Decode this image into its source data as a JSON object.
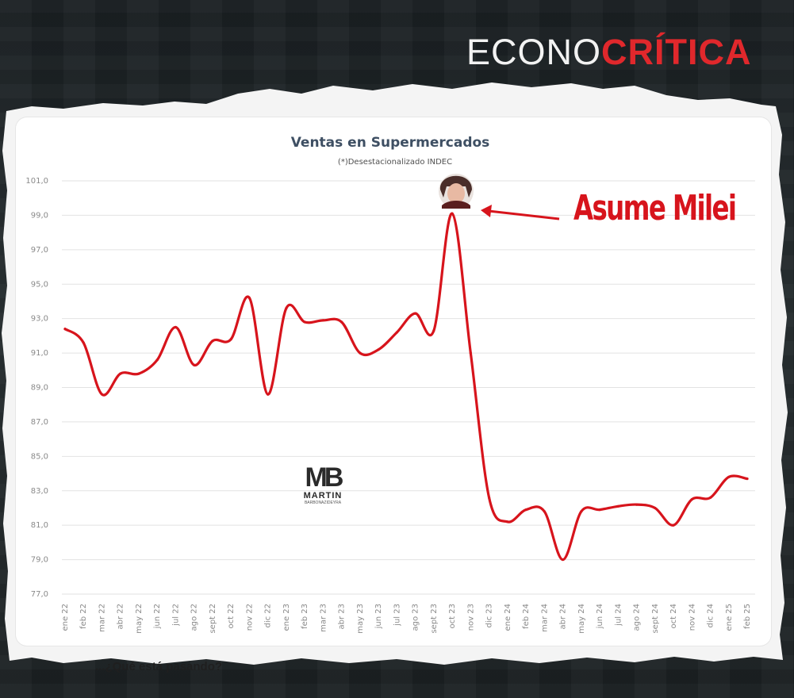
{
  "brand": {
    "light": "ECONO",
    "bold": "CRÍTICA"
  },
  "annotation": {
    "label": "Asume Milei"
  },
  "watermark": {
    "mark": "MB",
    "name": "MARTIN",
    "sub": "BARBONAZIDEYRA"
  },
  "footer_text": "...¿Qué está pasando?",
  "colors": {
    "line": "#d7141c",
    "accent": "#e0282c",
    "title": "#3e4f63"
  },
  "icons": {
    "face": "person-photo-icon",
    "arrow": "arrow-left-icon"
  },
  "chart_data": {
    "type": "line",
    "title": "Ventas en Supermercados",
    "subtitle": "(*)Desestacionalizado INDEC",
    "xlabel": "",
    "ylabel": "",
    "ylim": [
      77,
      101
    ],
    "yticks": [
      "101,0",
      "99,0",
      "97,0",
      "95,0",
      "93,0",
      "91,0",
      "89,0",
      "87,0",
      "85,0",
      "83,0",
      "81,0",
      "79,0",
      "77,0"
    ],
    "grid": true,
    "categories": [
      "ene 22",
      "feb 22",
      "mar 22",
      "abr 22",
      "may 22",
      "jun 22",
      "jul 22",
      "ago 22",
      "sept 22",
      "oct 22",
      "nov 22",
      "dic 22",
      "ene 23",
      "feb 23",
      "mar 23",
      "abr 23",
      "may 23",
      "jun 23",
      "jul 23",
      "ago 23",
      "sept 23",
      "oct 23",
      "nov 23",
      "dic 23",
      "ene 24",
      "feb 24",
      "mar 24",
      "abr 24",
      "may 24",
      "jun 24",
      "jul 24",
      "ago 24",
      "sept 24",
      "oct 24",
      "nov 24",
      "dic 24",
      "ene 25",
      "feb 25"
    ],
    "series": [
      {
        "values": [
          92.4,
          91.6,
          88.6,
          89.8,
          89.8,
          90.6,
          92.5,
          90.3,
          91.7,
          91.8,
          94.2,
          88.6,
          93.6,
          92.8,
          92.9,
          92.8,
          91.0,
          91.2,
          92.2,
          93.3,
          92.3,
          99.1,
          91.0,
          82.6,
          81.2,
          81.9,
          81.8,
          79.0,
          81.8,
          81.9,
          82.1,
          82.2,
          82.0,
          81.0,
          82.5,
          82.6,
          83.8,
          83.7
        ]
      }
    ],
    "annotations": [
      {
        "x": "oct 23",
        "text": "Asume Milei"
      }
    ]
  }
}
